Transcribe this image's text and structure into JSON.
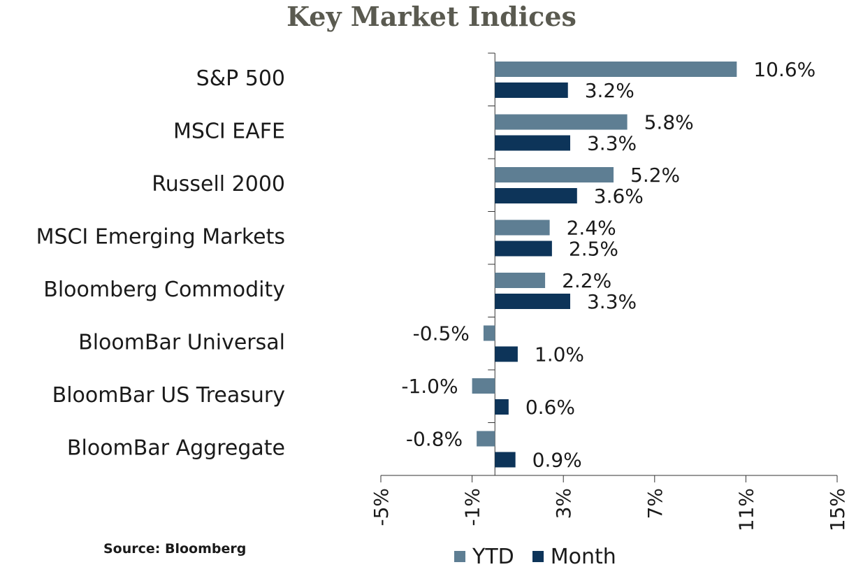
{
  "chart_data": {
    "type": "bar",
    "orientation": "horizontal",
    "title": "Key Market Indices",
    "categories": [
      "S&P 500",
      "MSCI EAFE",
      "Russell 2000",
      "MSCI Emerging Markets",
      "Bloomberg Commodity",
      "BloomBar Universal",
      "BloomBar US Treasury",
      "BloomBar Aggregate"
    ],
    "series": [
      {
        "name": "YTD",
        "color": "#5e7e93",
        "values": [
          10.6,
          5.8,
          5.2,
          2.4,
          2.2,
          -0.5,
          -1.0,
          -0.8
        ],
        "labels": [
          "10.6%",
          "5.8%",
          "5.2%",
          "2.4%",
          "2.2%",
          "-0.5%",
          "-1.0%",
          "-0.8%"
        ]
      },
      {
        "name": "Month",
        "color": "#0d3459",
        "values": [
          3.2,
          3.3,
          3.6,
          2.5,
          3.3,
          1.0,
          0.6,
          0.9
        ],
        "labels": [
          "3.2%",
          "3.3%",
          "3.6%",
          "2.5%",
          "3.3%",
          "1.0%",
          "0.6%",
          "0.9%"
        ]
      }
    ],
    "xlim": [
      -5,
      15
    ],
    "xticks": [
      -5,
      -1,
      3,
      7,
      11,
      15
    ],
    "xtick_labels": [
      "-5%",
      "-1%",
      "3%",
      "7%",
      "11%",
      "15%"
    ],
    "legend_position": "bottom",
    "grid": false
  },
  "source": "Source: Bloomberg"
}
